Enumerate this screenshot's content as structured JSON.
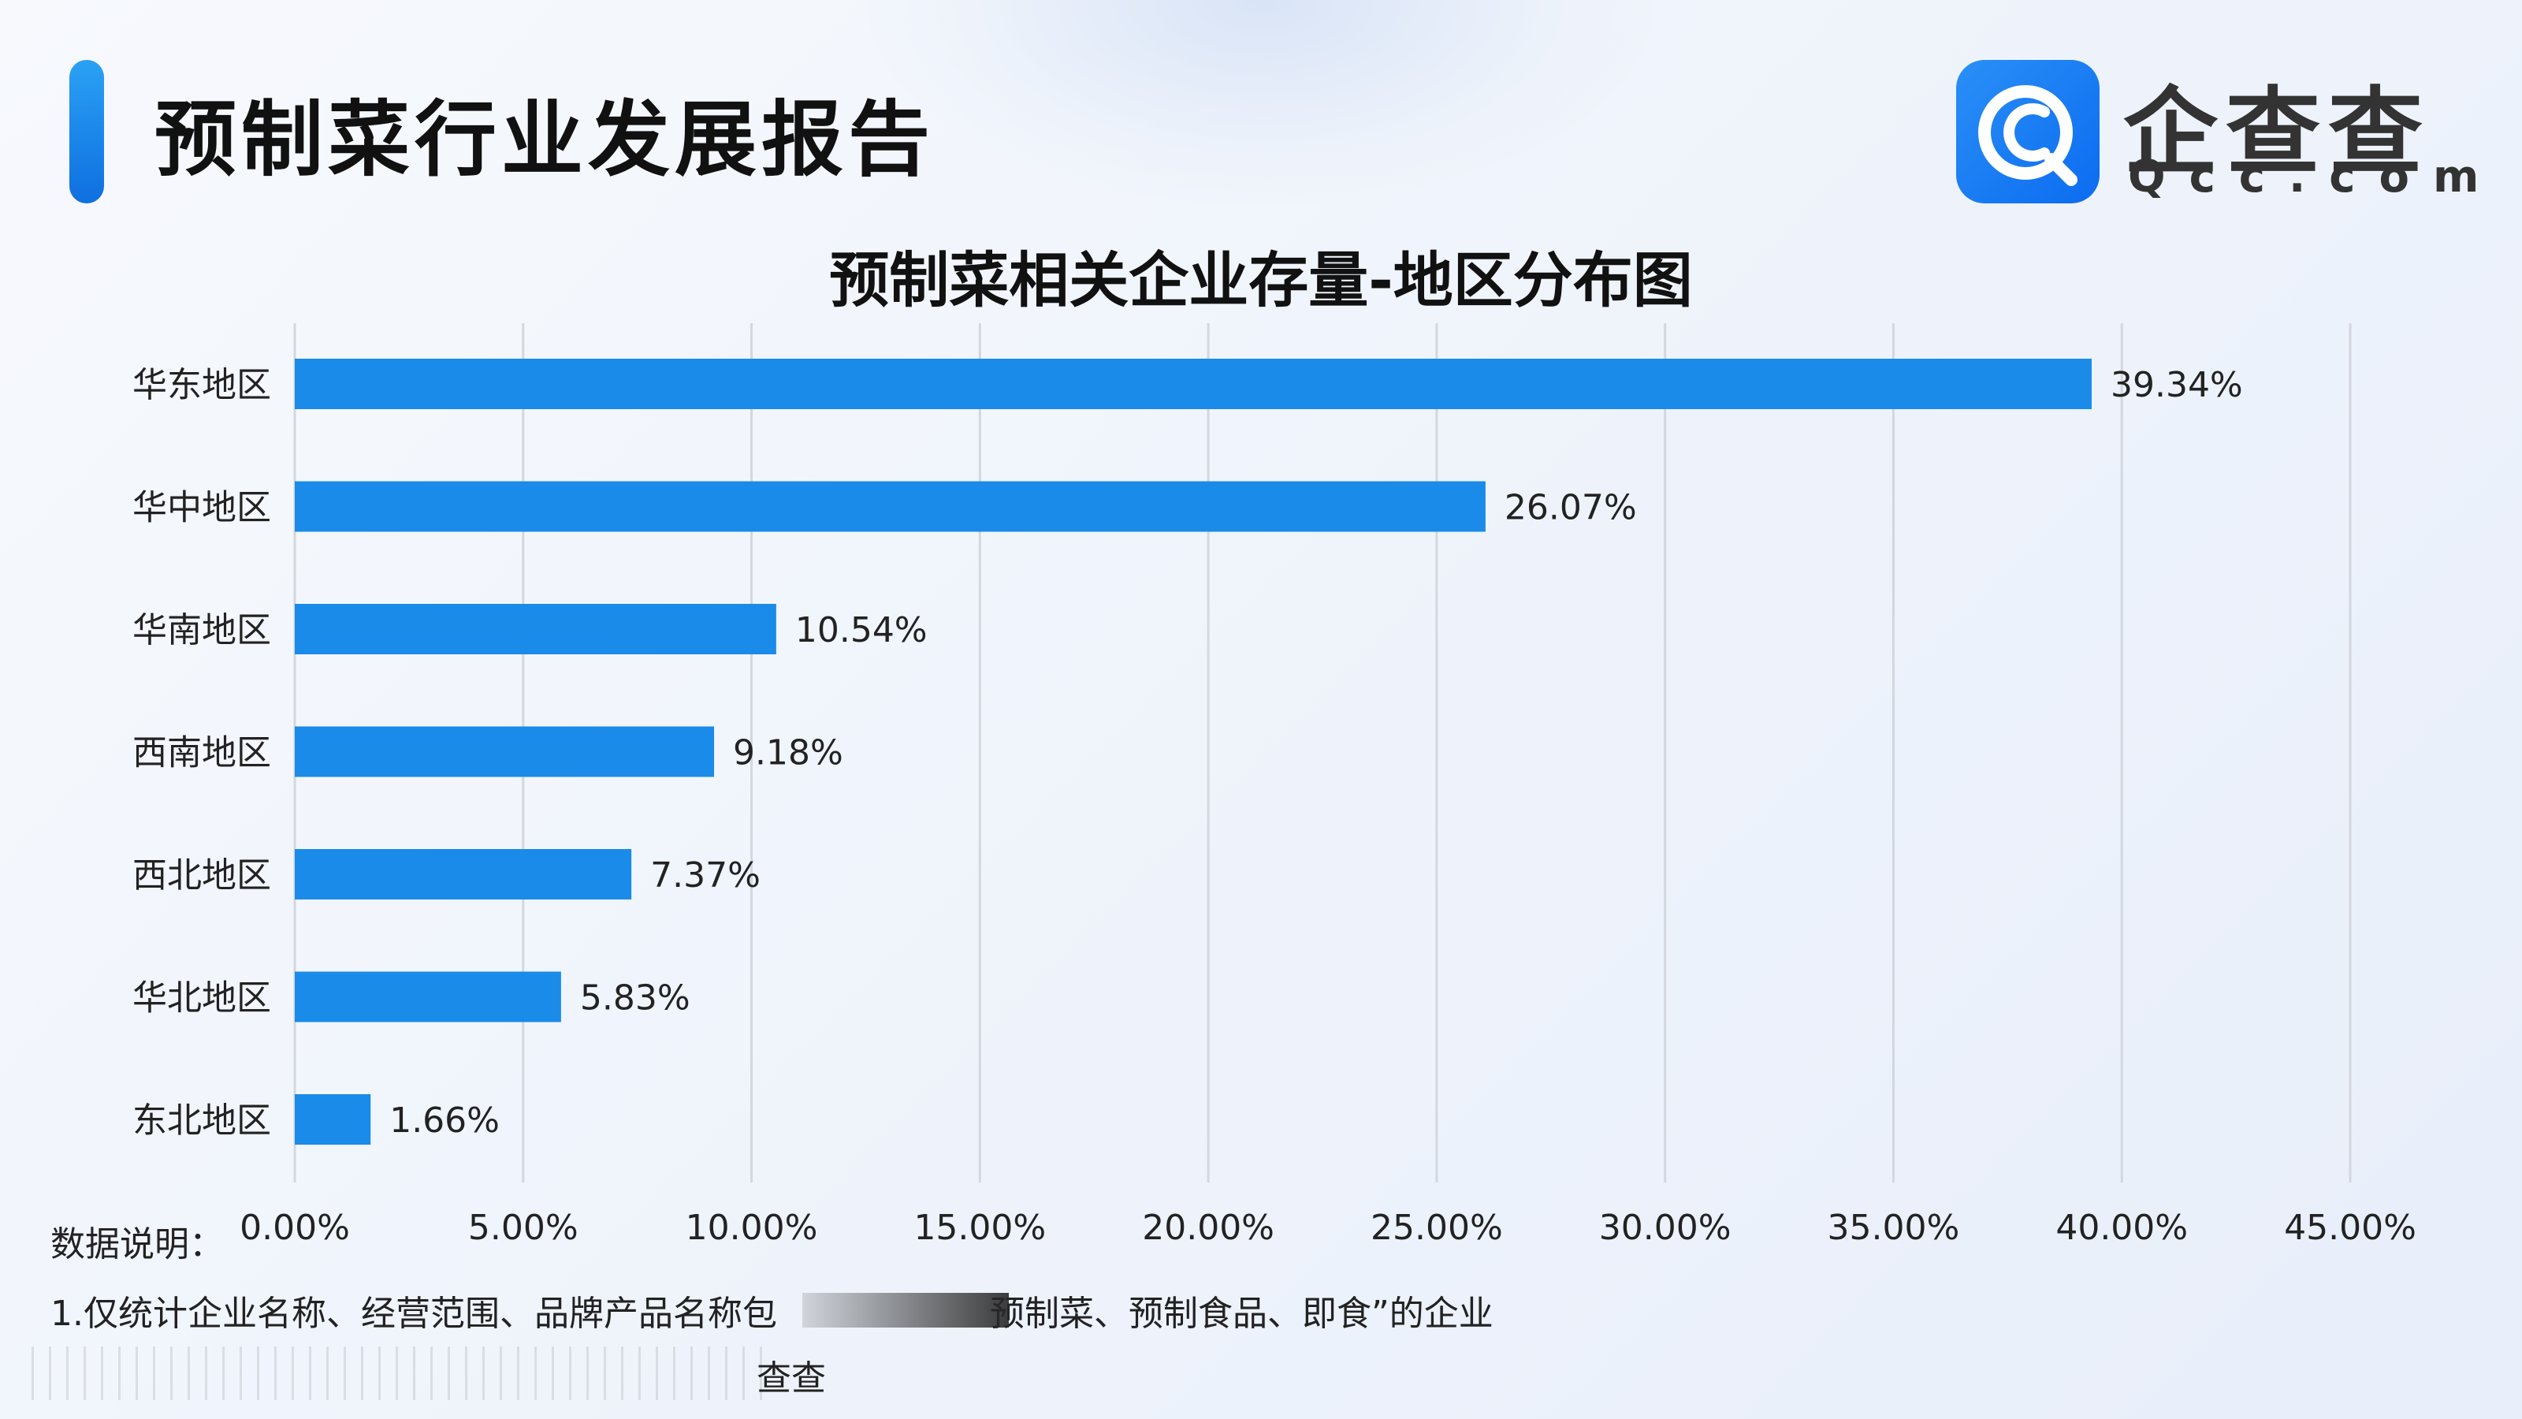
{
  "header": {
    "report_title": "预制菜行业发展报告",
    "logo_cn": "企查查",
    "logo_en": "Qcc.com"
  },
  "colors": {
    "bar": "#1a8be8",
    "accent": "#1a86ee",
    "grid": "#d3d7de",
    "text": "#222222"
  },
  "chart_data": {
    "type": "bar",
    "orientation": "horizontal",
    "title": "预制菜相关企业存量-地区分布图",
    "categories": [
      "华东地区",
      "华中地区",
      "华南地区",
      "西南地区",
      "西北地区",
      "华北地区",
      "东北地区"
    ],
    "values": [
      39.34,
      26.07,
      10.54,
      9.18,
      7.37,
      5.83,
      1.66
    ],
    "value_labels": [
      "39.34%",
      "26.07%",
      "10.54%",
      "9.18%",
      "7.37%",
      "5.83%",
      "1.66%"
    ],
    "xlim": [
      0,
      45
    ],
    "xticks": [
      0,
      5,
      10,
      15,
      20,
      25,
      30,
      35,
      40,
      45
    ],
    "xtick_labels": [
      "0.00%",
      "5.00%",
      "10.00%",
      "15.00%",
      "20.00%",
      "25.00%",
      "30.00%",
      "35.00%",
      "40.00%",
      "45.00%"
    ],
    "grid": true,
    "legend": "none"
  },
  "footnote": {
    "label": "数据说明：",
    "line1_before": "1.仅统计企业名称、经营范围、品牌产品名称包",
    "line1_after": "预制菜、预制食品、即食”的企业",
    "source_tail": "查查"
  }
}
